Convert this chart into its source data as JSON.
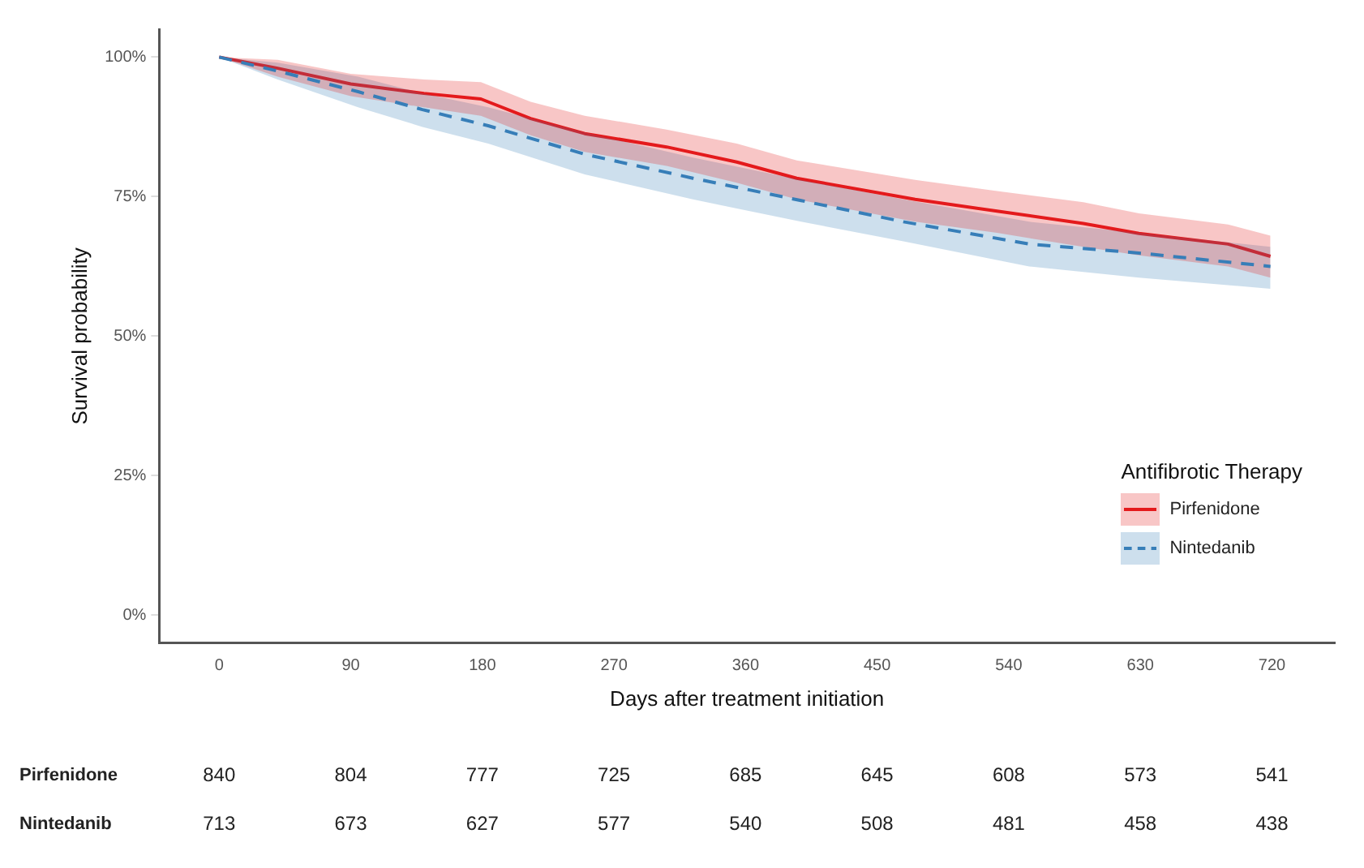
{
  "chart_data": {
    "type": "line",
    "xlabel": "Days after treatment initiation",
    "ylabel": "Survival probability",
    "legend_title": "Antifibrotic Therapy",
    "legend": "right",
    "grid": false,
    "marker": "none",
    "xlim": [
      -41,
      763
    ],
    "xticks": [
      0,
      90,
      180,
      270,
      360,
      450,
      540,
      630,
      720
    ],
    "ylim": [
      -5,
      105
    ],
    "yticks": [
      {
        "value": 0,
        "label": "0%"
      },
      {
        "value": 25,
        "label": "25%"
      },
      {
        "value": 50,
        "label": "50%"
      },
      {
        "value": 75,
        "label": "75%"
      },
      {
        "value": 100,
        "label": "100%"
      }
    ],
    "series": [
      {
        "name": "Pirfenidone",
        "color": "#e41a1c",
        "line_style": "solid",
        "x": [
          0,
          40,
          90,
          140,
          179,
          213,
          250,
          306,
          354,
          395,
          476,
          532,
          591,
          629,
          690,
          719
        ],
        "values": [
          100,
          98,
          95.2,
          93.5,
          92.5,
          89,
          86.3,
          83.9,
          81.2,
          78.3,
          74.5,
          72.4,
          70.2,
          68.4,
          66.5,
          64.3
        ],
        "lower": [
          100,
          96.5,
          93,
          91,
          89.5,
          86,
          83,
          80.5,
          77.5,
          74.5,
          70.5,
          68.5,
          66,
          64.5,
          62.5,
          60.5
        ],
        "upper": [
          100,
          99.5,
          97,
          96,
          95.5,
          92,
          89.5,
          87,
          84.5,
          81.5,
          78,
          76,
          74,
          72,
          70,
          68
        ]
      },
      {
        "name": "Nintedanib",
        "color": "#377eb8",
        "line_style": "dashed",
        "x": [
          0,
          40,
          95,
          139,
          184,
          250,
          324,
          398,
          468,
          554,
          629,
          719
        ],
        "values": [
          100,
          97.5,
          93.8,
          90.6,
          87.7,
          82.6,
          78.3,
          74.3,
          70.5,
          66.5,
          64.9,
          62.5
        ],
        "lower": [
          100,
          96,
          91,
          87.5,
          84.5,
          79,
          74.5,
          70.5,
          67,
          62.5,
          60.5,
          58.5
        ],
        "upper": [
          100,
          99,
          96.5,
          93.5,
          91,
          86.5,
          82,
          78,
          74.5,
          70.5,
          68.5,
          66
        ]
      }
    ],
    "annotations": [
      "Pirfenidone",
      "840",
      "804",
      "777",
      "725",
      "685",
      "645",
      "608",
      "573",
      "541",
      "Nintedanib",
      "713",
      "673",
      "627",
      "577",
      "540",
      "508",
      "481",
      "458",
      "438"
    ]
  }
}
